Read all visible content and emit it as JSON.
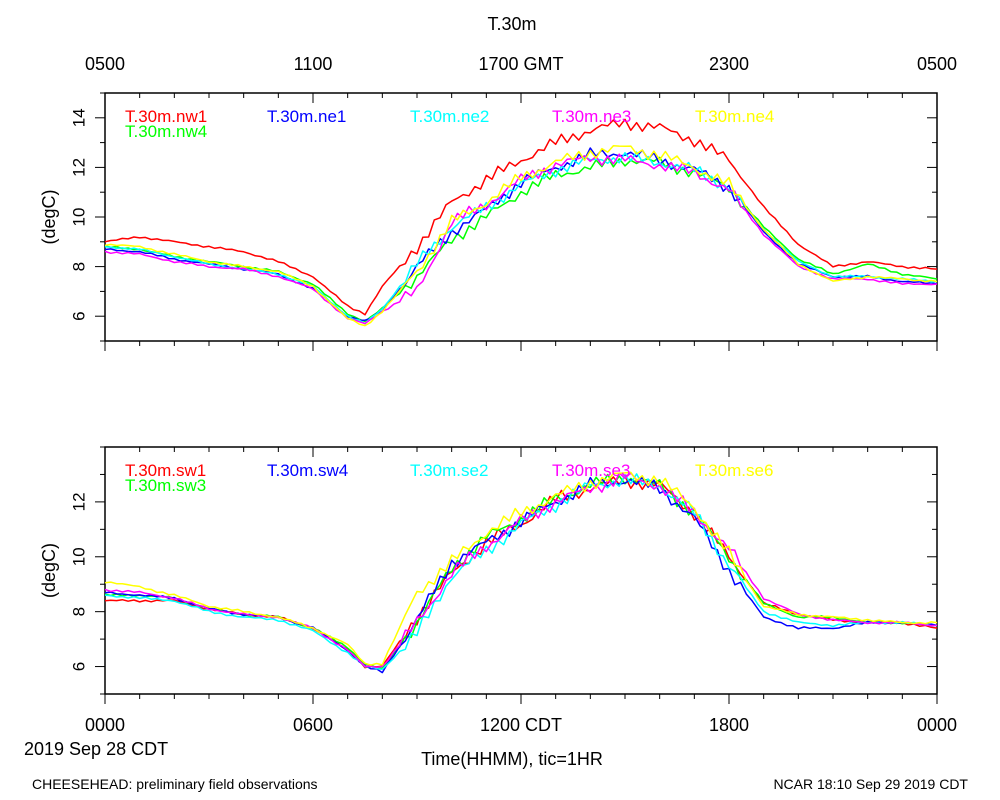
{
  "title": "T.30m",
  "top_axis": {
    "labels": [
      "0500",
      "1100",
      "1700 GMT",
      "2300",
      "0500"
    ]
  },
  "bottom_axis": {
    "labels": [
      "0000",
      "0600",
      "1200 CDT",
      "1800",
      "0000"
    ],
    "xlabel": "Time(HHMM), tic=1HR",
    "date_label": "2019 Sep 28 CDT"
  },
  "footer": {
    "left": "CHEESEHEAD: preliminary field observations",
    "right": "NCAR 18:10 Sep 29 2019 CDT"
  },
  "chart_data": [
    {
      "type": "line",
      "panel": "top",
      "ylabel": "(degC)",
      "ylim": [
        5,
        15
      ],
      "yticks": [
        6,
        8,
        10,
        12,
        14
      ],
      "xlim": [
        0,
        24
      ],
      "x_unit": "hours since 0000 CDT",
      "x": [
        0,
        1,
        2,
        3,
        4,
        5,
        6,
        7,
        7.5,
        8,
        9,
        10,
        11,
        12,
        13,
        14,
        15,
        16,
        17,
        18,
        19,
        20,
        21,
        22,
        23,
        24
      ],
      "series": [
        {
          "name": "T.30m.nw1",
          "color": "#ff0000",
          "values": [
            9.0,
            9.2,
            9.0,
            8.8,
            8.6,
            8.2,
            7.6,
            6.4,
            6.1,
            7.2,
            8.8,
            10.6,
            11.5,
            12.3,
            13.0,
            13.5,
            13.8,
            13.6,
            13.1,
            12.3,
            10.4,
            8.9,
            8.0,
            8.2,
            8.0,
            7.9
          ]
        },
        {
          "name": "T.30m.nw4",
          "color": "#00ff00",
          "values": [
            8.8,
            8.7,
            8.4,
            8.2,
            8.0,
            7.8,
            7.3,
            6.1,
            5.8,
            6.3,
            7.6,
            9.1,
            10.0,
            11.0,
            11.7,
            12.0,
            12.3,
            12.2,
            11.8,
            11.2,
            9.6,
            8.3,
            7.7,
            8.1,
            7.7,
            7.5
          ]
        },
        {
          "name": "T.30m.ne1",
          "color": "#0000ff",
          "values": [
            8.7,
            8.6,
            8.3,
            8.1,
            7.9,
            7.7,
            7.1,
            6.0,
            5.8,
            6.2,
            8.0,
            9.4,
            10.3,
            11.4,
            12.0,
            12.5,
            12.6,
            12.3,
            11.9,
            11.2,
            9.4,
            8.1,
            7.6,
            7.6,
            7.4,
            7.3
          ]
        },
        {
          "name": "T.30m.ne2",
          "color": "#00ffff",
          "values": [
            8.8,
            8.7,
            8.4,
            8.1,
            7.9,
            7.7,
            7.2,
            6.0,
            5.7,
            6.3,
            8.1,
            9.6,
            10.4,
            11.3,
            11.9,
            12.3,
            12.4,
            12.2,
            11.9,
            11.2,
            9.5,
            8.2,
            7.6,
            7.6,
            7.5,
            7.4
          ]
        },
        {
          "name": "T.30m.ne3",
          "color": "#ff00ff",
          "values": [
            8.6,
            8.5,
            8.2,
            8.0,
            7.9,
            7.6,
            7.1,
            5.9,
            5.7,
            6.2,
            7.0,
            9.8,
            10.5,
            11.5,
            12.1,
            12.4,
            12.3,
            12.1,
            11.8,
            11.1,
            9.3,
            8.0,
            7.5,
            7.5,
            7.3,
            7.3
          ]
        },
        {
          "name": "T.30m.ne4",
          "color": "#ffff00",
          "values": [
            8.9,
            8.8,
            8.5,
            8.2,
            8.0,
            7.8,
            7.2,
            5.9,
            5.6,
            6.2,
            7.8,
            9.8,
            10.6,
            11.6,
            12.2,
            12.6,
            12.8,
            12.5,
            12.0,
            11.3,
            9.5,
            8.1,
            7.4,
            7.6,
            7.5,
            7.4
          ]
        }
      ]
    },
    {
      "type": "line",
      "panel": "bottom",
      "ylabel": "(degC)",
      "ylim": [
        5,
        14
      ],
      "yticks": [
        6,
        8,
        10,
        12
      ],
      "xlim": [
        0,
        24
      ],
      "x_unit": "hours since 0000 CDT",
      "x": [
        0,
        1,
        2,
        3,
        4,
        5,
        6,
        7,
        7.5,
        8,
        9,
        10,
        11,
        12,
        13,
        14,
        15,
        16,
        17,
        18,
        19,
        20,
        21,
        22,
        23,
        24
      ],
      "series": [
        {
          "name": "T.30m.sw1",
          "color": "#ff0000",
          "values": [
            8.4,
            8.4,
            8.4,
            8.1,
            7.9,
            7.8,
            7.4,
            6.6,
            6.0,
            6.0,
            7.8,
            9.4,
            10.5,
            11.2,
            12.1,
            12.5,
            12.8,
            12.6,
            11.6,
            10.0,
            8.3,
            7.9,
            7.7,
            7.6,
            7.6,
            7.4
          ]
        },
        {
          "name": "T.30m.sw3",
          "color": "#00ff00",
          "values": [
            8.6,
            8.6,
            8.5,
            8.1,
            7.9,
            7.8,
            7.4,
            6.7,
            6.1,
            5.9,
            7.6,
            9.6,
            10.7,
            11.4,
            12.1,
            12.6,
            12.9,
            12.6,
            11.6,
            10.0,
            8.3,
            7.8,
            7.8,
            7.6,
            7.6,
            7.5
          ]
        },
        {
          "name": "T.30m.sw4",
          "color": "#0000ff",
          "values": [
            8.7,
            8.6,
            8.5,
            8.1,
            7.9,
            7.8,
            7.4,
            6.6,
            6.0,
            5.8,
            7.7,
            9.8,
            10.5,
            11.3,
            12.0,
            12.6,
            12.8,
            12.5,
            11.4,
            9.5,
            7.8,
            7.4,
            7.4,
            7.6,
            7.6,
            7.5
          ]
        },
        {
          "name": "T.30m.se2",
          "color": "#00ffff",
          "values": [
            8.6,
            8.5,
            8.4,
            8.0,
            7.8,
            7.7,
            7.3,
            6.5,
            6.0,
            5.9,
            7.2,
            9.3,
            10.2,
            11.2,
            11.9,
            12.6,
            12.8,
            12.6,
            11.6,
            9.7,
            8.0,
            7.6,
            7.5,
            7.6,
            7.6,
            7.5
          ]
        },
        {
          "name": "T.30m.se3",
          "color": "#ff00ff",
          "values": [
            8.8,
            8.7,
            8.5,
            8.1,
            7.9,
            7.8,
            7.4,
            6.6,
            6.0,
            6.0,
            7.6,
            9.4,
            10.4,
            11.3,
            12.0,
            12.5,
            12.9,
            12.6,
            11.6,
            10.3,
            8.5,
            7.9,
            7.7,
            7.6,
            7.6,
            7.5
          ]
        },
        {
          "name": "T.30m.se6",
          "color": "#ffff00",
          "values": [
            9.1,
            8.9,
            8.6,
            8.2,
            8.0,
            7.8,
            7.4,
            6.8,
            6.1,
            6.1,
            8.7,
            9.8,
            10.9,
            11.6,
            12.2,
            12.7,
            13.0,
            12.8,
            11.8,
            10.1,
            8.2,
            7.9,
            7.8,
            7.7,
            7.6,
            7.6
          ]
        }
      ]
    }
  ]
}
